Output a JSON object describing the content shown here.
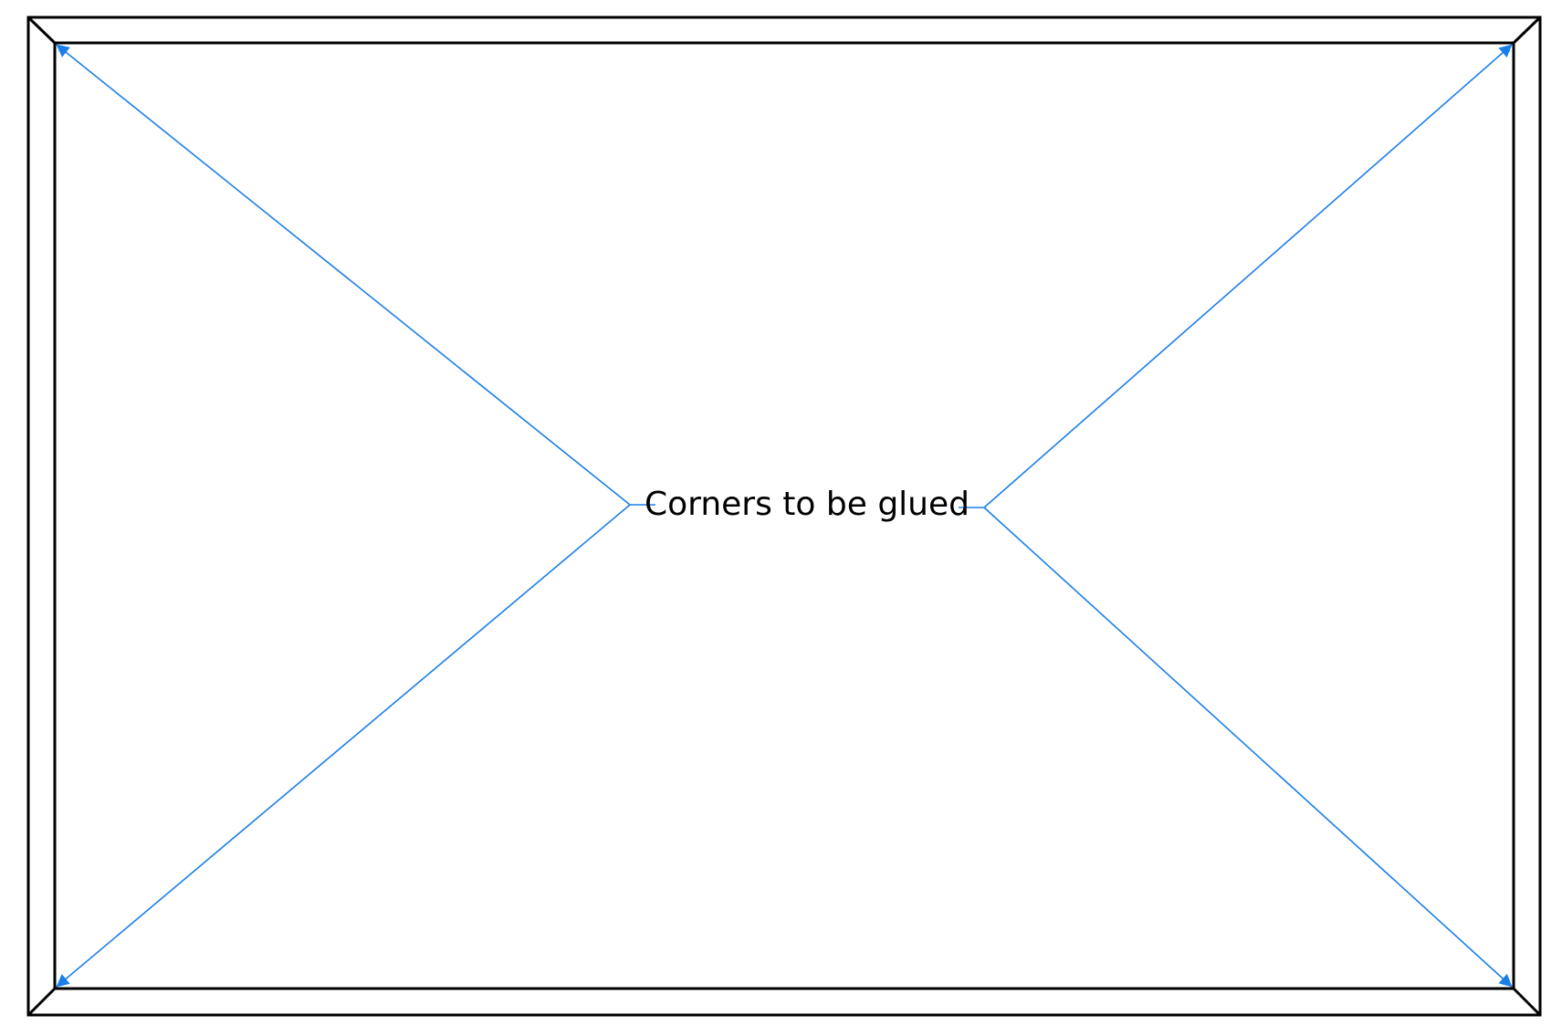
{
  "diagram": {
    "callout_text": "Corners to be glued",
    "callout_color": "#1a7fe8",
    "frame_color": "#000000"
  }
}
